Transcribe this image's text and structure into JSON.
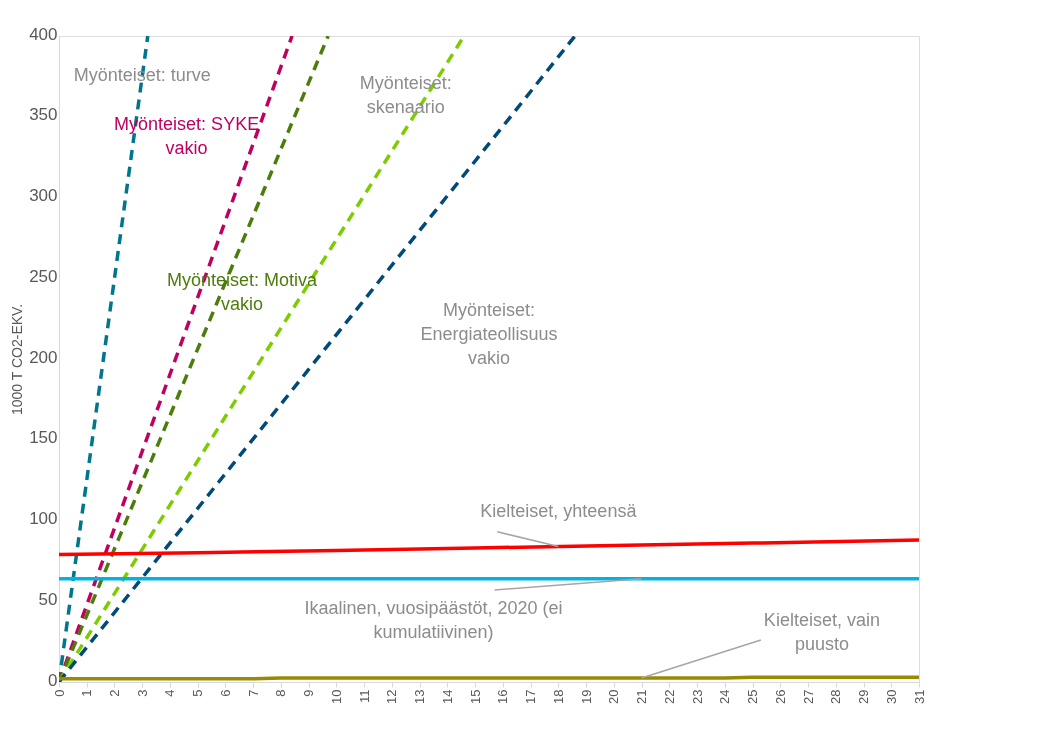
{
  "chart_data": {
    "type": "line",
    "ylabel": "1000 T CO2-EKV.",
    "xlim": [
      0,
      31
    ],
    "xticks": [
      0,
      1,
      2,
      3,
      4,
      5,
      6,
      7,
      8,
      9,
      10,
      11,
      12,
      13,
      14,
      15,
      16,
      17,
      18,
      19,
      20,
      21,
      22,
      23,
      24,
      25,
      26,
      27,
      28,
      29,
      30,
      31
    ],
    "ylim": [
      0,
      400
    ],
    "yticks": [
      0,
      50,
      100,
      150,
      200,
      250,
      300,
      350,
      400
    ],
    "grid": false,
    "series": [
      {
        "name": "Myönteiset: turve",
        "color": "#00768e",
        "line_style": "dashed",
        "x": [
          0,
          3.2
        ],
        "values": [
          0,
          400
        ]
      },
      {
        "name": "Myönteiset: SYKE vakio",
        "color": "#c0005f",
        "line_style": "dashed",
        "x": [
          0,
          8.4
        ],
        "values": [
          0,
          400
        ]
      },
      {
        "name": "Myönteiset: Motiva vakio",
        "color": "#4c7c0a",
        "line_style": "dashed",
        "x": [
          0,
          9.7
        ],
        "values": [
          0,
          400
        ]
      },
      {
        "name": "Myönteiset: skenaario",
        "color": "#7ccc00",
        "line_style": "dashed",
        "x": [
          0,
          14.6
        ],
        "values": [
          0,
          400
        ]
      },
      {
        "name": "Myönteiset: Energiateollisuus vakio",
        "color": "#004a78",
        "line_style": "dashed",
        "x": [
          0,
          18.6
        ],
        "values": [
          0,
          400
        ]
      },
      {
        "name": "Kielteiset, yhteensä",
        "color": "#ff0000",
        "line_style": "solid",
        "x": [
          0,
          5,
          10,
          15,
          20,
          25,
          31
        ],
        "values": [
          79,
          80,
          81.5,
          83,
          84.5,
          86,
          88
        ]
      },
      {
        "name": "Ikaalinen, vuosipäästöt, 2020 (ei kumulatiivinen)",
        "color": "#00b4e0",
        "line_style": "solid",
        "x": [
          0,
          31
        ],
        "values": [
          64,
          64
        ]
      },
      {
        "name": "Kielteiset, vain puusto",
        "color": "#9a8a00",
        "line_style": "solid",
        "x": [
          0,
          7,
          8,
          24,
          25,
          31
        ],
        "values": [
          2,
          2,
          2.5,
          2.5,
          3,
          3
        ]
      }
    ]
  }
}
